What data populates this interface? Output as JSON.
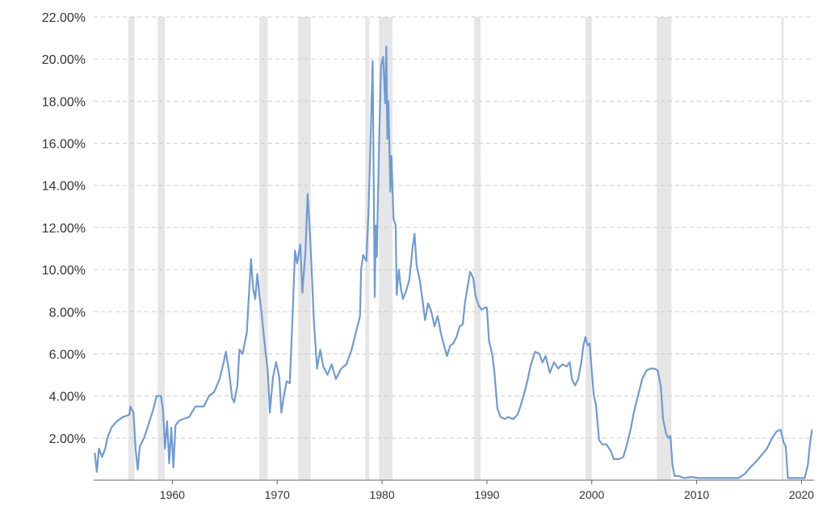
{
  "chart_data": {
    "type": "line",
    "title": "",
    "xlabel": "",
    "ylabel": "",
    "xlim": [
      1952.5,
      2021.2
    ],
    "ylim": [
      0,
      22
    ],
    "grid": true,
    "legend": "none",
    "y_ticks": [
      "22.00%",
      "20.00%",
      "18.00%",
      "16.00%",
      "14.00%",
      "12.00%",
      "10.00%",
      "8.00%",
      "6.00%",
      "4.00%",
      "2.00%"
    ],
    "y_tick_values": [
      22,
      20,
      18,
      16,
      14,
      12,
      10,
      8,
      6,
      4,
      2
    ],
    "x_ticks": [
      "1960",
      "1970",
      "1980",
      "1990",
      "2000",
      "2010",
      "2020"
    ],
    "x_tick_values": [
      1960,
      1970,
      1980,
      1990,
      2000,
      2010,
      2020
    ],
    "recessions": [
      [
        1955.8,
        1956.4
      ],
      [
        1958.6,
        1959.3
      ],
      [
        1968.3,
        1969.1
      ],
      [
        1972.0,
        1973.2
      ],
      [
        1978.4,
        1978.8
      ],
      [
        1979.7,
        1981.0
      ],
      [
        1988.8,
        1989.4
      ],
      [
        1999.4,
        2000.0
      ],
      [
        2006.2,
        2007.6
      ],
      [
        2018.1,
        2018.3
      ]
    ],
    "colors": {
      "line": "#6f9bd4",
      "recession": "#e6e6e6",
      "grid": "#cccccc",
      "axis": "#666666"
    },
    "series": [
      {
        "values": [
          [
            1952.6,
            1.3
          ],
          [
            1952.8,
            0.4
          ],
          [
            1953.0,
            1.5
          ],
          [
            1953.3,
            1.1
          ],
          [
            1953.6,
            1.5
          ],
          [
            1953.8,
            2.0
          ],
          [
            1954.2,
            2.5
          ],
          [
            1954.7,
            2.8
          ],
          [
            1955.3,
            3.0
          ],
          [
            1955.9,
            3.1
          ],
          [
            1956.0,
            3.5
          ],
          [
            1956.3,
            3.2
          ],
          [
            1956.5,
            1.5
          ],
          [
            1956.7,
            0.5
          ],
          [
            1956.9,
            1.6
          ],
          [
            1957.3,
            2.0
          ],
          [
            1957.7,
            2.6
          ],
          [
            1958.2,
            3.4
          ],
          [
            1958.5,
            4.0
          ],
          [
            1958.9,
            4.0
          ],
          [
            1959.1,
            3.4
          ],
          [
            1959.3,
            1.5
          ],
          [
            1959.5,
            2.8
          ],
          [
            1959.7,
            0.8
          ],
          [
            1959.9,
            2.5
          ],
          [
            1960.1,
            0.6
          ],
          [
            1960.3,
            2.6
          ],
          [
            1960.6,
            2.8
          ],
          [
            1961.0,
            2.9
          ],
          [
            1961.6,
            3.0
          ],
          [
            1962.2,
            3.5
          ],
          [
            1963.0,
            3.5
          ],
          [
            1963.5,
            4.0
          ],
          [
            1964.0,
            4.2
          ],
          [
            1964.5,
            4.8
          ],
          [
            1964.9,
            5.6
          ],
          [
            1965.1,
            6.1
          ],
          [
            1965.4,
            5.2
          ],
          [
            1965.7,
            3.9
          ],
          [
            1965.9,
            3.7
          ],
          [
            1966.2,
            4.5
          ],
          [
            1966.4,
            6.2
          ],
          [
            1966.7,
            6.0
          ],
          [
            1967.1,
            7.0
          ],
          [
            1967.3,
            8.8
          ],
          [
            1967.5,
            10.5
          ],
          [
            1967.7,
            9.1
          ],
          [
            1967.9,
            8.6
          ],
          [
            1968.1,
            9.8
          ],
          [
            1968.3,
            8.8
          ],
          [
            1968.5,
            8.0
          ],
          [
            1968.8,
            6.5
          ],
          [
            1969.1,
            5.2
          ],
          [
            1969.3,
            3.2
          ],
          [
            1969.6,
            4.9
          ],
          [
            1969.9,
            5.6
          ],
          [
            1970.2,
            4.9
          ],
          [
            1970.4,
            3.2
          ],
          [
            1970.6,
            3.9
          ],
          [
            1970.9,
            4.7
          ],
          [
            1971.2,
            4.6
          ],
          [
            1971.5,
            8.2
          ],
          [
            1971.7,
            10.9
          ],
          [
            1971.9,
            10.3
          ],
          [
            1972.2,
            11.2
          ],
          [
            1972.4,
            8.9
          ],
          [
            1972.7,
            10.9
          ],
          [
            1972.9,
            13.6
          ],
          [
            1973.1,
            12.0
          ],
          [
            1973.3,
            9.8
          ],
          [
            1973.5,
            7.5
          ],
          [
            1973.8,
            5.3
          ],
          [
            1974.1,
            6.2
          ],
          [
            1974.4,
            5.4
          ],
          [
            1974.8,
            5.0
          ],
          [
            1975.2,
            5.5
          ],
          [
            1975.6,
            4.8
          ],
          [
            1976.1,
            5.3
          ],
          [
            1976.6,
            5.5
          ],
          [
            1977.1,
            6.2
          ],
          [
            1977.5,
            7.0
          ],
          [
            1977.9,
            7.8
          ],
          [
            1978.0,
            10.0
          ],
          [
            1978.2,
            10.7
          ],
          [
            1978.5,
            10.4
          ],
          [
            1978.7,
            12.7
          ],
          [
            1978.9,
            16.1
          ],
          [
            1979.1,
            19.9
          ],
          [
            1979.3,
            8.7
          ],
          [
            1979.4,
            12.1
          ],
          [
            1979.5,
            10.6
          ],
          [
            1979.7,
            15.7
          ],
          [
            1979.9,
            19.7
          ],
          [
            1980.1,
            20.1
          ],
          [
            1980.3,
            17.9
          ],
          [
            1980.4,
            20.6
          ],
          [
            1980.5,
            16.2
          ],
          [
            1980.6,
            18.0
          ],
          [
            1980.8,
            13.7
          ],
          [
            1980.9,
            15.4
          ],
          [
            1981.1,
            12.4
          ],
          [
            1981.3,
            12.1
          ],
          [
            1981.4,
            8.8
          ],
          [
            1981.6,
            10.0
          ],
          [
            1981.8,
            9.1
          ],
          [
            1982.0,
            8.6
          ],
          [
            1982.3,
            9.0
          ],
          [
            1982.6,
            9.5
          ],
          [
            1982.9,
            11.0
          ],
          [
            1983.1,
            11.7
          ],
          [
            1983.3,
            10.2
          ],
          [
            1983.6,
            9.5
          ],
          [
            1983.9,
            8.4
          ],
          [
            1984.1,
            7.6
          ],
          [
            1984.4,
            8.4
          ],
          [
            1984.7,
            8.0
          ],
          [
            1985.0,
            7.3
          ],
          [
            1985.3,
            7.8
          ],
          [
            1985.6,
            7.0
          ],
          [
            1985.9,
            6.4
          ],
          [
            1986.2,
            5.9
          ],
          [
            1986.5,
            6.4
          ],
          [
            1986.8,
            6.5
          ],
          [
            1987.1,
            6.8
          ],
          [
            1987.4,
            7.3
          ],
          [
            1987.7,
            7.4
          ],
          [
            1987.9,
            8.4
          ],
          [
            1988.2,
            9.3
          ],
          [
            1988.4,
            9.9
          ],
          [
            1988.7,
            9.6
          ],
          [
            1988.9,
            8.8
          ],
          [
            1989.2,
            8.3
          ],
          [
            1989.5,
            8.1
          ],
          [
            1989.8,
            8.2
          ],
          [
            1990.0,
            8.2
          ],
          [
            1990.2,
            6.6
          ],
          [
            1990.5,
            6.0
          ],
          [
            1990.7,
            5.2
          ],
          [
            1991.0,
            3.4
          ],
          [
            1991.3,
            3.0
          ],
          [
            1991.7,
            2.9
          ],
          [
            1992.0,
            3.0
          ],
          [
            1992.5,
            2.9
          ],
          [
            1992.9,
            3.1
          ],
          [
            1993.2,
            3.5
          ],
          [
            1993.6,
            4.2
          ],
          [
            1993.9,
            4.8
          ],
          [
            1994.2,
            5.5
          ],
          [
            1994.6,
            6.1
          ],
          [
            1995.0,
            6.0
          ],
          [
            1995.3,
            5.6
          ],
          [
            1995.6,
            5.9
          ],
          [
            1996.0,
            5.1
          ],
          [
            1996.4,
            5.6
          ],
          [
            1996.8,
            5.3
          ],
          [
            1997.2,
            5.5
          ],
          [
            1997.6,
            5.4
          ],
          [
            1997.9,
            5.6
          ],
          [
            1998.1,
            4.8
          ],
          [
            1998.4,
            4.5
          ],
          [
            1998.7,
            4.8
          ],
          [
            1999.0,
            5.6
          ],
          [
            1999.2,
            6.4
          ],
          [
            1999.4,
            6.8
          ],
          [
            1999.6,
            6.4
          ],
          [
            1999.8,
            6.5
          ],
          [
            2000.0,
            5.2
          ],
          [
            2000.2,
            4.0
          ],
          [
            2000.4,
            3.6
          ],
          [
            2000.7,
            1.9
          ],
          [
            2001.0,
            1.7
          ],
          [
            2001.4,
            1.7
          ],
          [
            2001.8,
            1.4
          ],
          [
            2002.1,
            1.0
          ],
          [
            2002.6,
            1.0
          ],
          [
            2003.0,
            1.1
          ],
          [
            2003.3,
            1.6
          ],
          [
            2003.7,
            2.4
          ],
          [
            2004.0,
            3.2
          ],
          [
            2004.4,
            4.0
          ],
          [
            2004.8,
            4.8
          ],
          [
            2005.2,
            5.2
          ],
          [
            2005.6,
            5.3
          ],
          [
            2006.0,
            5.3
          ],
          [
            2006.3,
            5.2
          ],
          [
            2006.6,
            4.4
          ],
          [
            2006.8,
            2.9
          ],
          [
            2007.1,
            2.2
          ],
          [
            2007.3,
            2.0
          ],
          [
            2007.5,
            2.1
          ],
          [
            2007.7,
            0.7
          ],
          [
            2007.9,
            0.2
          ],
          [
            2008.3,
            0.2
          ],
          [
            2008.8,
            0.1
          ],
          [
            2009.5,
            0.15
          ],
          [
            2010.2,
            0.1
          ],
          [
            2011.0,
            0.1
          ],
          [
            2011.8,
            0.1
          ],
          [
            2012.5,
            0.1
          ],
          [
            2013.3,
            0.1
          ],
          [
            2014.0,
            0.1
          ],
          [
            2014.6,
            0.3
          ],
          [
            2015.1,
            0.6
          ],
          [
            2015.7,
            0.9
          ],
          [
            2016.2,
            1.2
          ],
          [
            2016.7,
            1.5
          ],
          [
            2017.2,
            2.0
          ],
          [
            2017.6,
            2.3
          ],
          [
            2018.0,
            2.4
          ],
          [
            2018.3,
            1.8
          ],
          [
            2018.5,
            1.6
          ],
          [
            2018.7,
            0.1
          ],
          [
            2019.2,
            0.1
          ],
          [
            2019.8,
            0.1
          ],
          [
            2020.3,
            0.1
          ],
          [
            2020.6,
            0.7
          ],
          [
            2020.8,
            1.7
          ],
          [
            2021.0,
            2.4
          ]
        ]
      }
    ]
  }
}
